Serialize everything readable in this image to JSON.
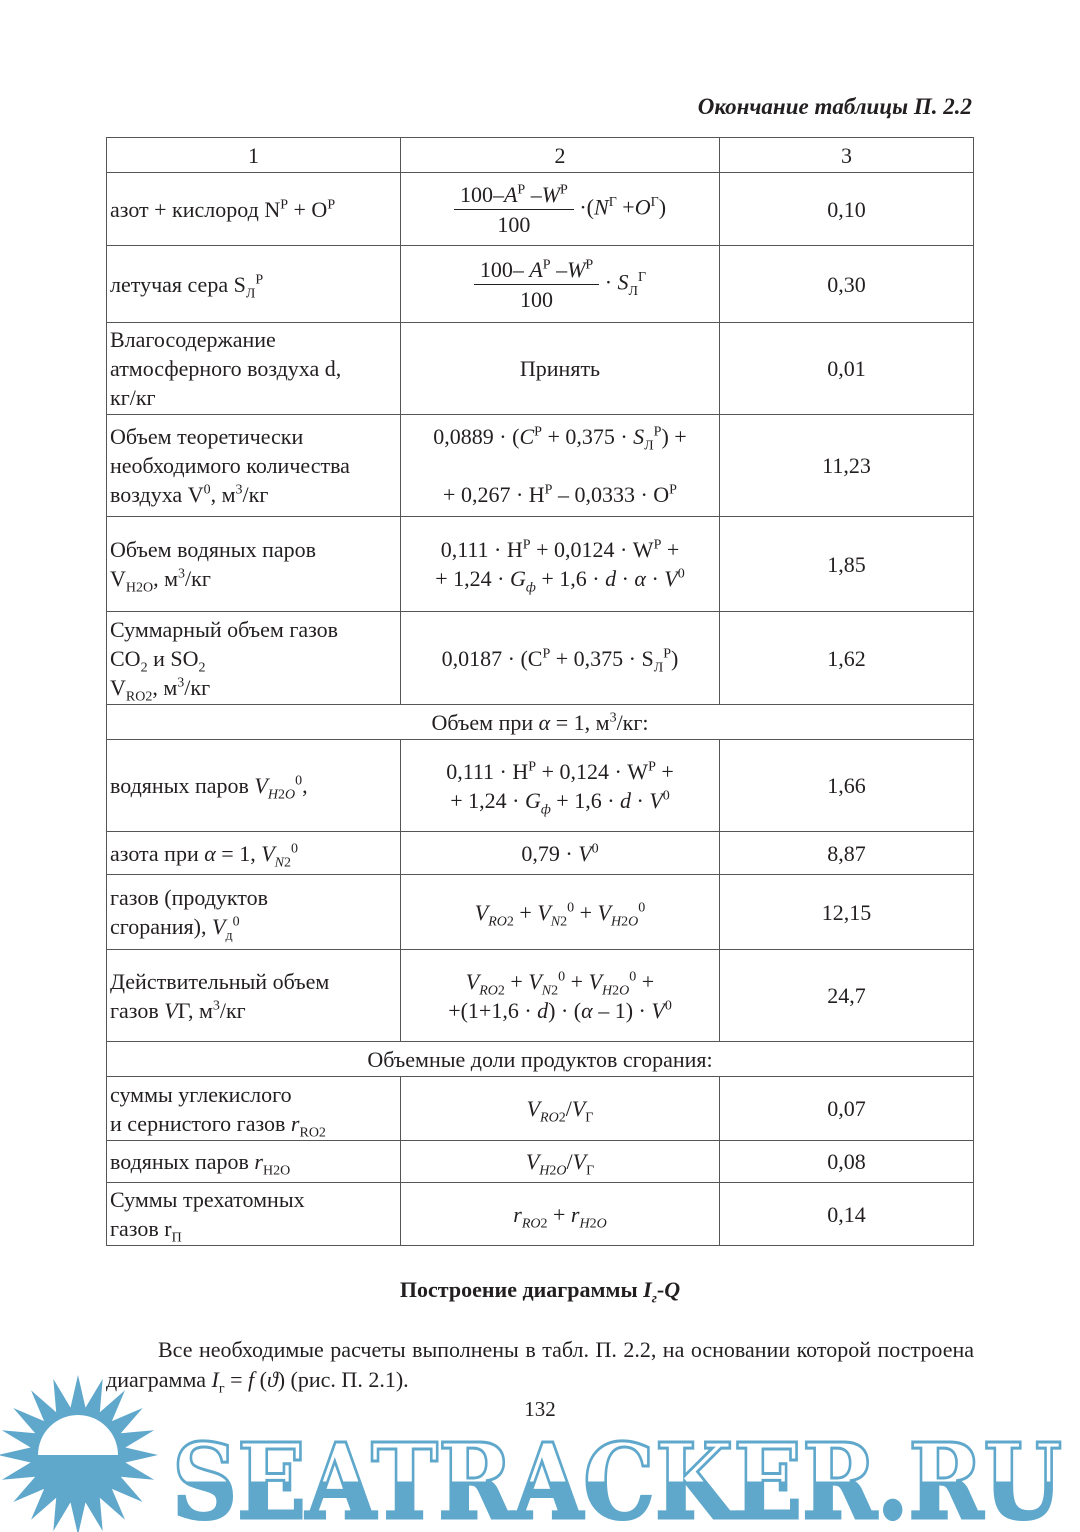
{
  "caption": "Окончание таблицы П. 2.2",
  "table": {
    "header": [
      "1",
      "2",
      "3"
    ],
    "rows": [
      {
        "type": "row",
        "name": "азот + кислород N<sup>Р</sup> + O<sup>Р</sup>",
        "formula": "<span class='frac'><span class='num'>100–<i>A</i><sup>Р</sup> –<i>W</i><sup>Р</sup></span><span class='den'>100</span></span> ·(<i>N</i><sup>Г</sup> +<i>O</i><sup>Г</sup>)",
        "value": "0,10"
      },
      {
        "type": "row",
        "name": "летучая сера S<sub>Л</sub><sup>Р</sup>",
        "formula": "<span class='frac'><span class='num'>100– <i>A</i><sup>Р</sup> –<i>W</i><sup>Р</sup></span><span class='den'>100</span></span> · <i>S</i><sub>Л</sub><sup>Г</sup>",
        "value": "0,30"
      },
      {
        "type": "row",
        "name": "Влагосодержание<br>атмосферного воздуха d,<br>кг/кг",
        "formula": "Принять",
        "value": "0,01"
      },
      {
        "type": "row",
        "name": "Объем теоретически<br>необходимого количества<br>воздуха V<sup>0</sup>, м<sup>3</sup>/кг",
        "formula": "0,0889 · (<i>C</i><sup>Р</sup> + 0,375 · <i>S</i><sub>Л</sub><sup>Р</sup>) +<br><br>+ 0,267 · H<sup>Р</sup> – 0,0333 · O<sup>Р</sup>",
        "value": "11,23"
      },
      {
        "type": "row",
        "name": "Объем водяных паров<br>V<sub>H2O</sub>, м<sup>3</sup>/кг",
        "formula": "0,111 · H<sup>Р</sup> + 0,0124 · W<sup>Р</sup> +<br>+ 1,24 · <i>G</i><sub><i>ф</i></sub> + 1,6 · <i>d</i> · <i>α</i> · <i>V</i><sup>0</sup>",
        "value": "1,85"
      },
      {
        "type": "row",
        "name": "Суммарный объем газов<br>CO<sub>2</sub> и SO<sub>2</sub><br>V<sub>RO2</sub>, м<sup>3</sup>/кг",
        "formula": "0,0187 · (C<sup>Р</sup> + 0,375 · S<sub>Л</sub><sup>Р</sup>)",
        "value": "1,62"
      },
      {
        "type": "span",
        "text": "Объем при <i>α</i> = 1, м<sup>3</sup>/кг:"
      },
      {
        "type": "row",
        "name": "водяных паров <i>V</i><sub><i>H</i>2<i>O</i></sub><sup>0</sup>,",
        "formula": "0,111 · H<sup>Р</sup> + 0,124 · W<sup>Р</sup> +<br>+ 1,24 · <i>G</i><sub><i>ф</i></sub> + 1,6 · <i>d</i> · <i>V</i><sup>0</sup>",
        "value": "1,66"
      },
      {
        "type": "row",
        "name": "азота при <i>α</i> = 1, <i>V</i><sub><i>N</i>2</sub><sup>0</sup>",
        "formula": "0,79 · <i>V</i><sup>0</sup>",
        "value": "8,87"
      },
      {
        "type": "row",
        "name": "газов (продуктов<br>сгорания), <i>V</i><sub>д</sub><sup>0</sup>",
        "formula": "<i>V</i><sub><i>RO</i>2</sub> + <i>V</i><sub><i>N</i>2</sub><sup>0</sup> + <i>V</i><sub><i>H</i>2<i>O</i></sub><sup>0</sup>",
        "value": "12,15"
      },
      {
        "type": "row",
        "name": "Действительный объем<br>газов <i>V</i>Г, м<sup>3</sup>/кг",
        "formula": "<i>V</i><sub><i>RO</i>2</sub> + <i>V</i><sub><i>N</i>2</sub><sup>0</sup> + <i>V</i><sub><i>H</i>2<i>O</i></sub><sup>0</sup> +<br>+(1+1,6 · <i>d</i>) · (<i>α</i> – 1) · <i>V</i><sup>0</sup>",
        "value": "24,7"
      },
      {
        "type": "span",
        "text": "Объемные доли продуктов сгорания:"
      },
      {
        "type": "row",
        "name": "суммы углекислого<br>и сернистого газов <i>r</i><sub>RO2</sub>",
        "formula": "<i>V</i><sub><i>RO</i>2</sub>/<i>V</i><sub>Г</sub>",
        "value": "0,07"
      },
      {
        "type": "row",
        "name": "водяных паров <i>r</i><sub>H2O</sub>",
        "formula": "<i>V</i><sub><i>H</i>2<i>O</i></sub>/<i>V</i><sub>Г</sub>",
        "value": "0,08"
      },
      {
        "type": "row",
        "name": "Суммы трехатомных<br>газов r<sub>П</sub>",
        "formula": "<i>r</i><sub><i>RO</i>2</sub> + <i>r</i><sub><i>H</i>2<i>O</i></sub>",
        "value": "0,14"
      }
    ]
  },
  "section_heading": "Построение диаграммы <i>I<sub>г</sub></i>-<i>Q</i>",
  "paragraph": "Все необходимые расчеты выполнены в табл. П. 2.2, на основании которой построена диаграмма <i>I</i><sub>г</sub> = <i>f</i> (<i>ϑ</i>) (рис. П. 2.1).",
  "page_number": "132",
  "watermark": {
    "text": "SEATRACKER.RU",
    "color": "#5fa8cc"
  }
}
